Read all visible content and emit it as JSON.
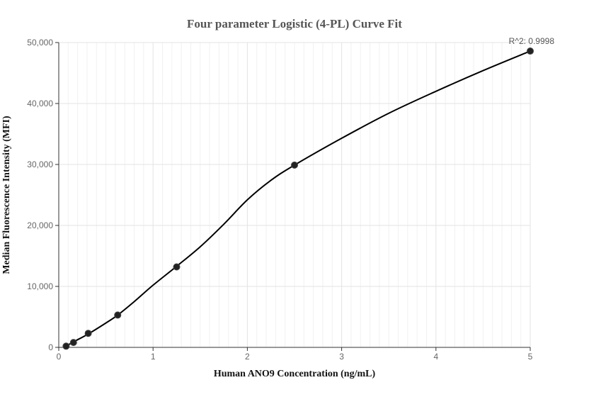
{
  "chart_data": {
    "type": "scatter",
    "title": "Four parameter Logistic (4-PL) Curve Fit",
    "xlabel": "Human ANO9 Concentration (ng/mL)",
    "ylabel": "Median Fluorescence Intensity (MFI)",
    "xlim": [
      0,
      5
    ],
    "ylim": [
      0,
      50000
    ],
    "x_ticks": [
      0,
      1,
      2,
      3,
      4,
      5
    ],
    "x_tick_labels": [
      "0",
      "1",
      "2",
      "3",
      "4",
      "5"
    ],
    "y_ticks": [
      0,
      10000,
      20000,
      30000,
      40000,
      50000
    ],
    "y_tick_labels": [
      "0",
      "10,000",
      "20,000",
      "30,000",
      "40,000",
      "50,000"
    ],
    "grid": true,
    "series": [
      {
        "x": [
          0.078,
          0.156,
          0.3125,
          0.625,
          1.25,
          2.5,
          5
        ],
        "y": [
          200,
          800,
          2300,
          5300,
          13200,
          29900,
          48600
        ]
      }
    ],
    "fit_curve": {
      "x": [
        0.078,
        0.156,
        0.3125,
        0.5,
        0.625,
        0.8,
        1.0,
        1.25,
        1.5,
        1.75,
        2.0,
        2.25,
        2.5,
        3.0,
        3.5,
        4.0,
        4.5,
        5.0
      ],
      "y": [
        200,
        900,
        2200,
        4000,
        5300,
        7500,
        10200,
        13300,
        16500,
        20200,
        24200,
        27400,
        29900,
        34300,
        38400,
        42000,
        45400,
        48600
      ]
    },
    "annotation": "R^2: 0.9998",
    "colors": {
      "points": "#222222",
      "curve": "#000000",
      "grid": "#e3e3e3"
    }
  }
}
